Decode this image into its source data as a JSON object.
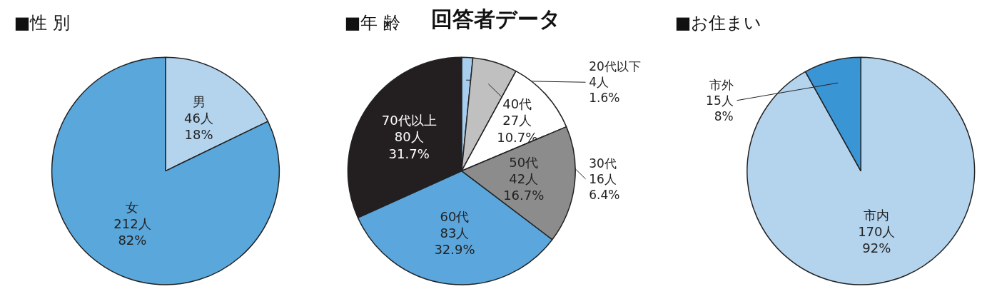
{
  "chart_data": [
    {
      "type": "pie",
      "title": "■性 別",
      "categories": [
        "男",
        "女"
      ],
      "values": [
        46,
        212
      ],
      "colors": [
        "#b4d4ee",
        "#5aa7dc"
      ],
      "value_labels": [
        "46人\n18%",
        "212人\n82%"
      ]
    },
    {
      "type": "pie",
      "title": "■年 齢",
      "annotations": [
        "回答者データ"
      ],
      "categories": [
        "20代以下",
        "30代",
        "40代",
        "50代",
        "60代",
        "70代以上"
      ],
      "values": [
        4,
        16,
        27,
        42,
        83,
        80
      ],
      "colors": [
        "#a8cdee",
        "#c0c0c0",
        "#ffffff",
        "#8c8c8c",
        "#5ba7dd",
        "#231f20"
      ],
      "value_labels": [
        "4人\n1.6%",
        "16人\n6.4%",
        "27人\n10.7%",
        "42人\n16.7%",
        "83人\n32.9%",
        "80人\n31.7%"
      ]
    },
    {
      "type": "pie",
      "title": "■お住まい",
      "categories": [
        "市内",
        "市外"
      ],
      "values": [
        170,
        15
      ],
      "colors": [
        "#b4d4ee",
        "#3a95d5"
      ],
      "value_labels": [
        "170人\n92%",
        "15人\n8%"
      ]
    }
  ]
}
